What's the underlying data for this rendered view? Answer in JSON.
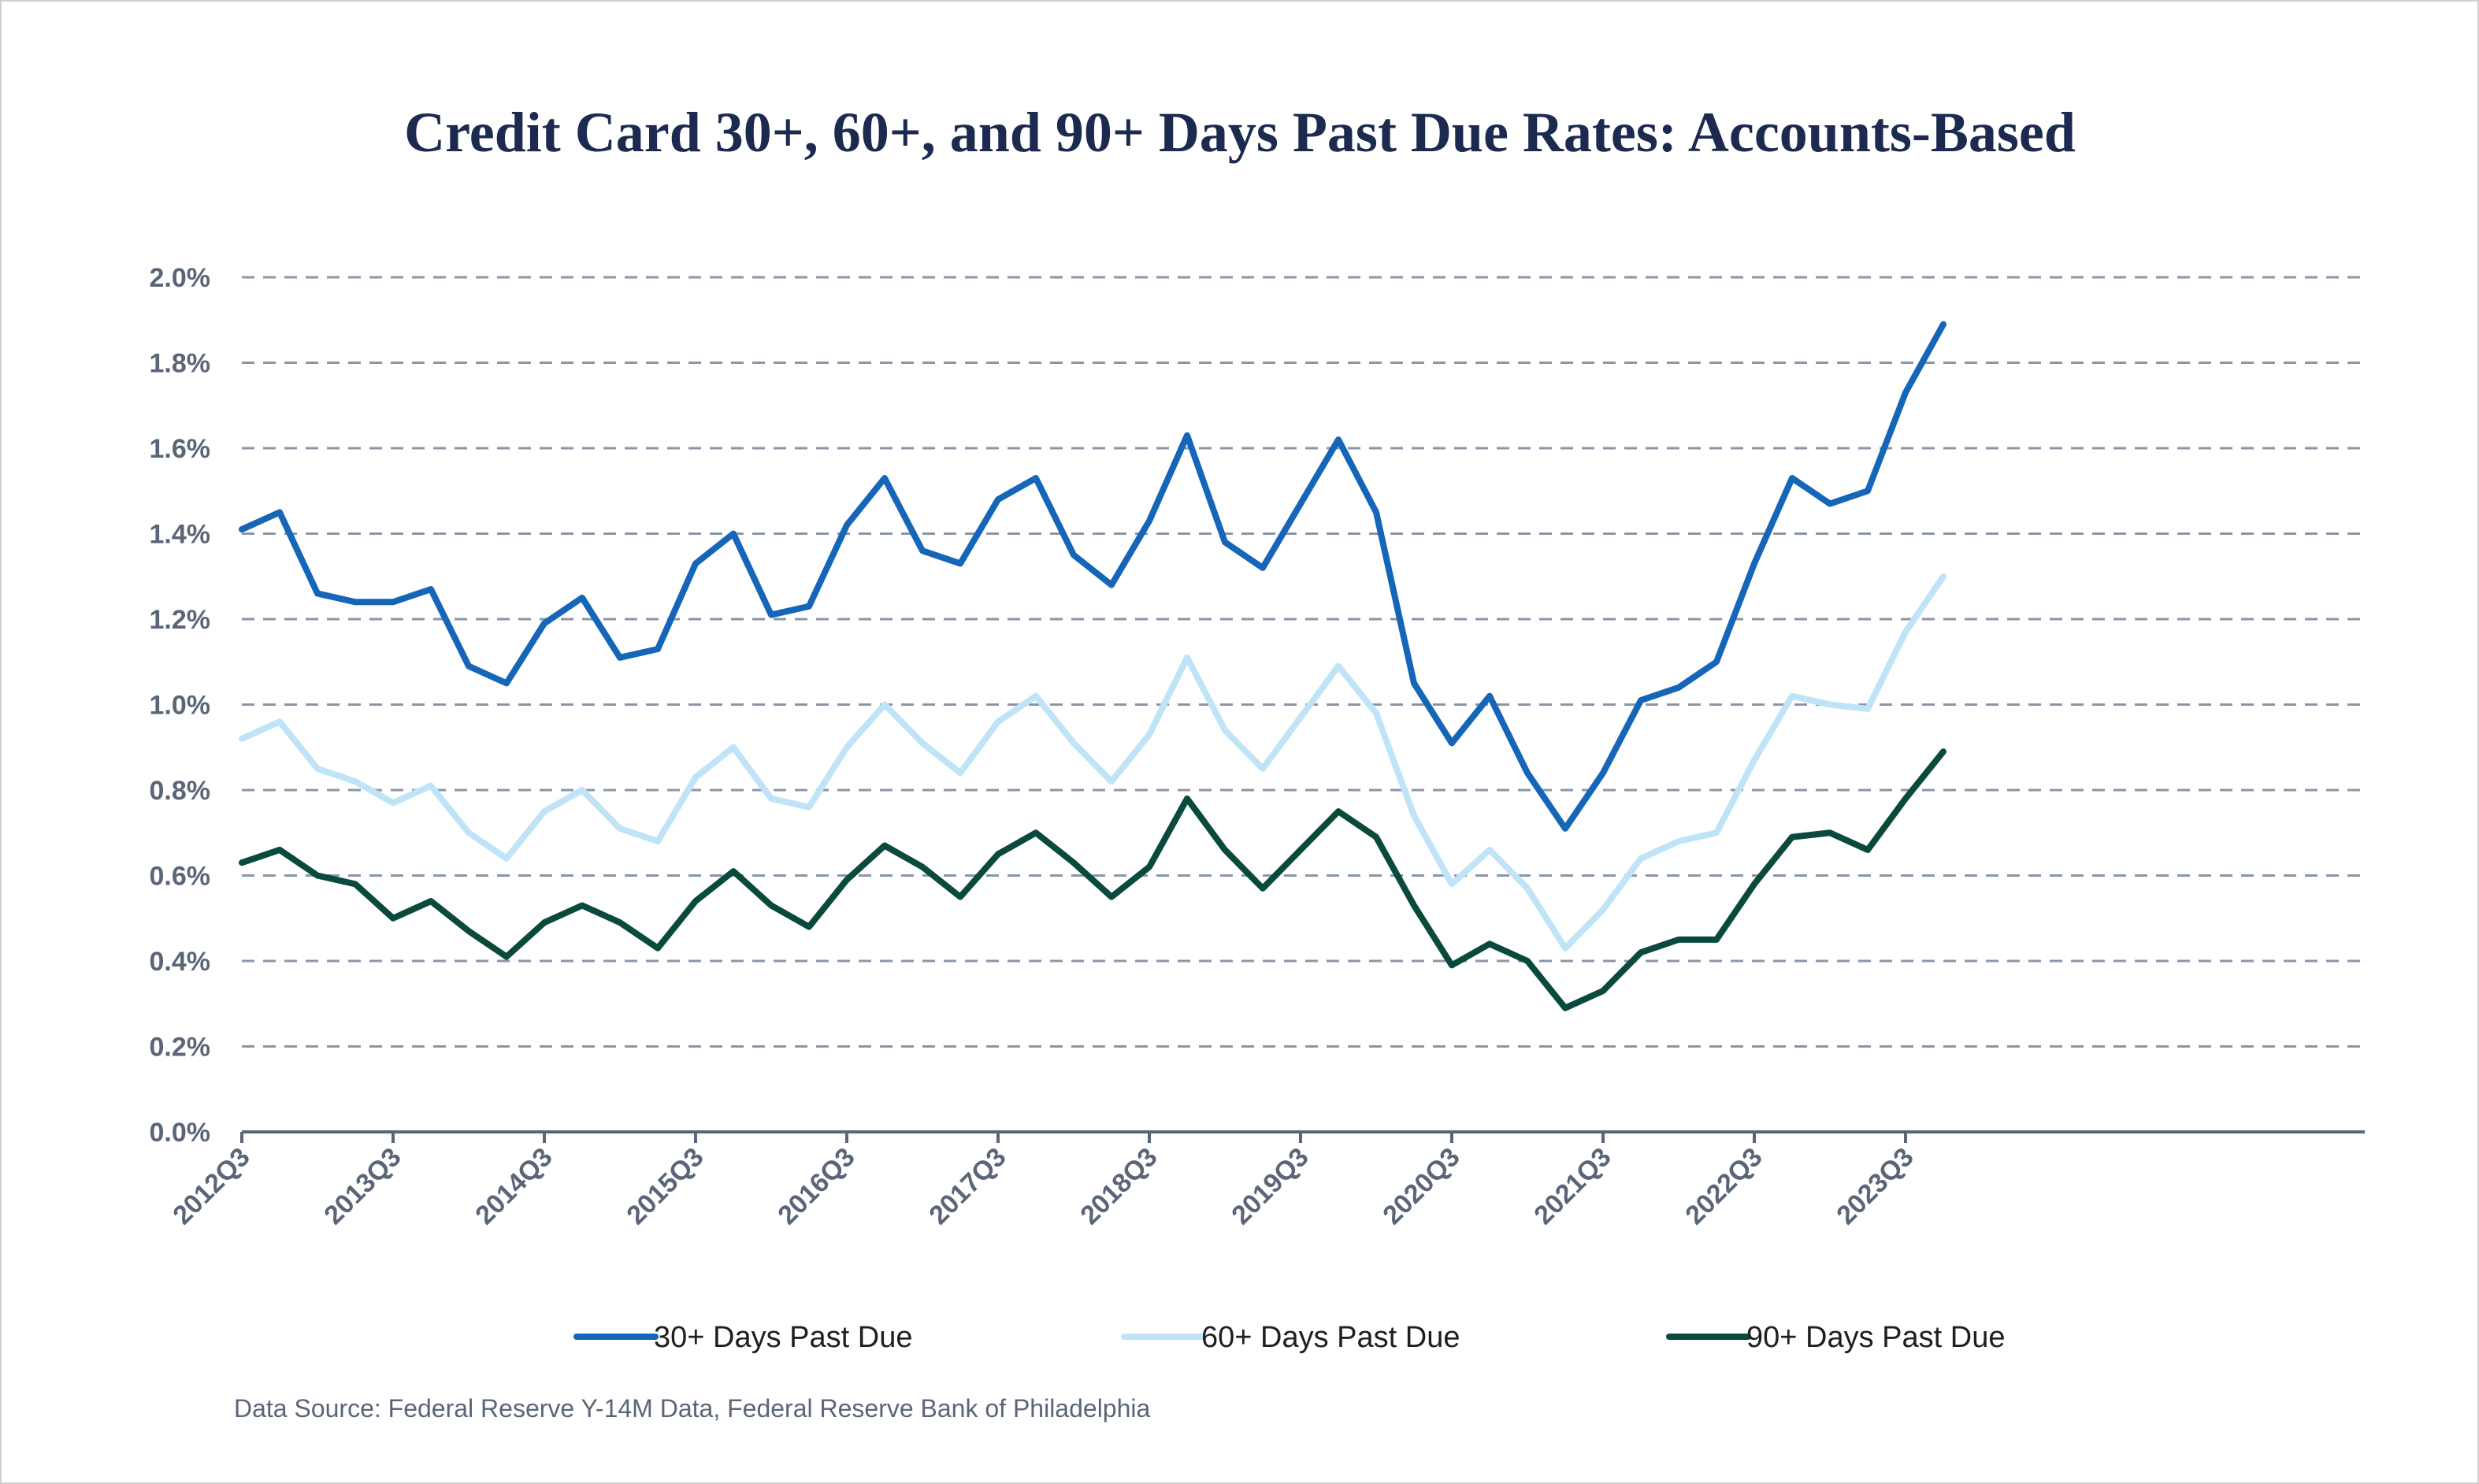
{
  "chart_data": {
    "type": "line",
    "title": "Credit Card 30+, 60+, and 90+ Days Past Due Rates: Accounts-Based",
    "xlabel": "",
    "ylabel": "",
    "ylim": [
      0,
      2.0
    ],
    "y_ticks": [
      "0.0%",
      "0.2%",
      "0.4%",
      "0.6%",
      "0.8%",
      "1.0%",
      "1.2%",
      "1.4%",
      "1.6%",
      "1.8%",
      "2.0%"
    ],
    "x_tick_labels": [
      "2012Q3",
      "2013Q3",
      "2014Q3",
      "2015Q3",
      "2016Q3",
      "2017Q3",
      "2018Q3",
      "2019Q3",
      "2020Q3",
      "2021Q3",
      "2022Q3",
      "2023Q3"
    ],
    "grid": true,
    "legend_position": "bottom",
    "categories": [
      "2012Q3",
      "2012Q4",
      "2013Q1",
      "2013Q2",
      "2013Q3",
      "2013Q4",
      "2014Q1",
      "2014Q2",
      "2014Q3",
      "2014Q4",
      "2015Q1",
      "2015Q2",
      "2015Q3",
      "2015Q4",
      "2016Q1",
      "2016Q2",
      "2016Q3",
      "2016Q4",
      "2017Q1",
      "2017Q2",
      "2017Q3",
      "2017Q4",
      "2018Q1",
      "2018Q2",
      "2018Q3",
      "2018Q4",
      "2019Q1",
      "2019Q2",
      "2019Q3",
      "2019Q4",
      "2020Q1",
      "2020Q2",
      "2020Q3",
      "2020Q4",
      "2021Q1",
      "2021Q2",
      "2021Q3",
      "2021Q4",
      "2022Q1",
      "2022Q2",
      "2022Q3",
      "2022Q4",
      "2023Q1",
      "2023Q2",
      "2023Q3",
      "2023Q4"
    ],
    "series": [
      {
        "name": "30+ Days Past Due",
        "color": "#1565b8",
        "values": [
          1.41,
          1.45,
          1.26,
          1.24,
          1.24,
          1.27,
          1.09,
          1.05,
          1.19,
          1.25,
          1.11,
          1.13,
          1.33,
          1.4,
          1.21,
          1.23,
          1.42,
          1.53,
          1.36,
          1.33,
          1.48,
          1.53,
          1.35,
          1.28,
          1.43,
          1.63,
          1.38,
          1.32,
          1.47,
          1.62,
          1.45,
          1.05,
          0.91,
          1.02,
          0.84,
          0.71,
          0.84,
          1.01,
          1.04,
          1.1,
          1.33,
          1.53,
          1.47,
          1.5,
          1.73,
          1.89
        ]
      },
      {
        "name": "60+ Days Past Due",
        "color": "#bfe3f7",
        "values": [
          0.92,
          0.96,
          0.85,
          0.82,
          0.77,
          0.81,
          0.7,
          0.64,
          0.75,
          0.8,
          0.71,
          0.68,
          0.83,
          0.9,
          0.78,
          0.76,
          0.9,
          1.0,
          0.91,
          0.84,
          0.96,
          1.02,
          0.91,
          0.82,
          0.93,
          1.11,
          0.94,
          0.85,
          0.97,
          1.09,
          0.98,
          0.74,
          0.58,
          0.66,
          0.57,
          0.43,
          0.52,
          0.64,
          0.68,
          0.7,
          0.87,
          1.02,
          1.0,
          0.99,
          1.17,
          1.3
        ]
      },
      {
        "name": "90+ Days Past Due",
        "color": "#0a4a3c",
        "values": [
          0.63,
          0.66,
          0.6,
          0.58,
          0.5,
          0.54,
          0.47,
          0.41,
          0.49,
          0.53,
          0.49,
          0.43,
          0.54,
          0.61,
          0.53,
          0.48,
          0.59,
          0.67,
          0.62,
          0.55,
          0.65,
          0.7,
          0.63,
          0.55,
          0.62,
          0.78,
          0.66,
          0.57,
          0.66,
          0.75,
          0.69,
          0.53,
          0.39,
          0.44,
          0.4,
          0.29,
          0.33,
          0.42,
          0.45,
          0.45,
          0.58,
          0.69,
          0.7,
          0.66,
          0.78,
          0.89
        ]
      }
    ]
  },
  "source_note": "Data Source: Federal Reserve Y-14M Data, Federal Reserve Bank of Philadelphia"
}
